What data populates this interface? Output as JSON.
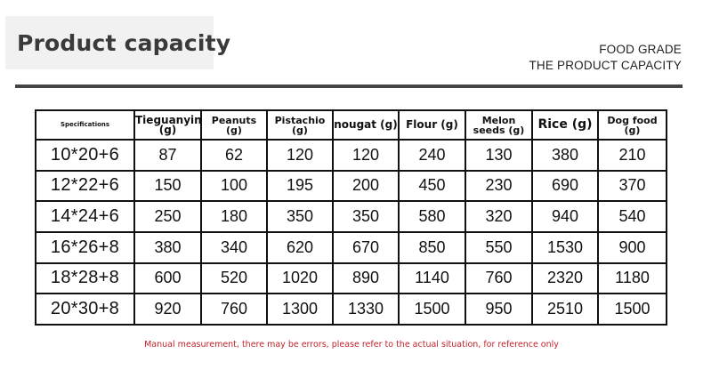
{
  "header": {
    "title": "Product capacity",
    "subtitle_line1": "FOOD GRADE",
    "subtitle_line2": "THE PRODUCT CAPACITY"
  },
  "table": {
    "columns": [
      {
        "label": "Specifications"
      },
      {
        "label": "Tieguanyin (g)"
      },
      {
        "label": "Peanuts (g)"
      },
      {
        "label": "Pistachio (g)"
      },
      {
        "label": "nougat (g)"
      },
      {
        "label": "Flour (g)"
      },
      {
        "label": "Melon seeds (g)"
      },
      {
        "label": "Rice (g)"
      },
      {
        "label": "Dog food (g)"
      }
    ],
    "rows": [
      [
        "10*20+6",
        "87",
        "62",
        "120",
        "120",
        "240",
        "130",
        "380",
        "210"
      ],
      [
        "12*22+6",
        "150",
        "100",
        "195",
        "200",
        "450",
        "230",
        "690",
        "370"
      ],
      [
        "14*24+6",
        "250",
        "180",
        "350",
        "350",
        "580",
        "320",
        "940",
        "540"
      ],
      [
        "16*26+8",
        "380",
        "340",
        "620",
        "670",
        "850",
        "550",
        "1530",
        "900"
      ],
      [
        "18*28+8",
        "600",
        "520",
        "1020",
        "890",
        "1140",
        "760",
        "2320",
        "1180"
      ],
      [
        "20*30+8",
        "920",
        "760",
        "1300",
        "1330",
        "1500",
        "950",
        "2510",
        "1500"
      ]
    ]
  },
  "footer": {
    "note": "Manual measurement, there may be errors, please refer to the actual situation, for reference only"
  },
  "colors": {
    "title": "#3a3a3a",
    "rule": "#444444",
    "note": "#c0242b"
  }
}
